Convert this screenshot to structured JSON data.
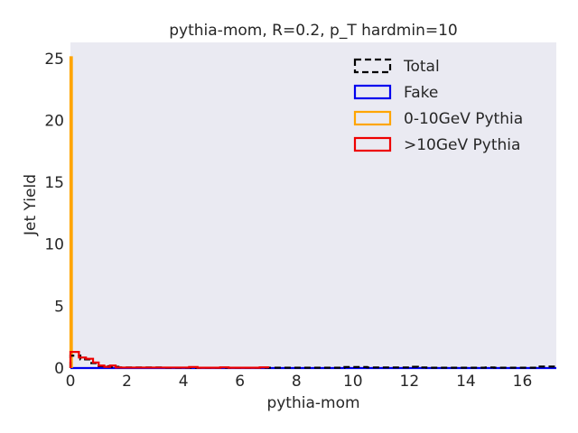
{
  "chart_data": {
    "type": "step-histogram",
    "title": "pythia-mom, R=0.2, p_T hardmin=10",
    "xlabel": "pythia-mom",
    "ylabel": "Jet Yield",
    "xlim": [
      0,
      17.2
    ],
    "ylim": [
      0,
      26.3
    ],
    "xticks": [
      0,
      2,
      4,
      6,
      8,
      10,
      12,
      14,
      16
    ],
    "yticks": [
      0,
      5,
      10,
      15,
      20,
      25
    ],
    "grid": false,
    "background": "#eaeaf2",
    "legend_position": "top-right",
    "series": [
      {
        "name": "Total",
        "color": "#000000",
        "style": "dashed",
        "bin_edges": [
          0,
          0.35,
          0.7,
          1.0,
          1.35,
          1.7,
          2.0,
          3.3,
          7.0,
          9.7,
          10.5,
          11.7,
          12.0,
          12.3,
          12.6,
          14.7,
          15.0,
          15.5,
          16.5,
          17.2
        ],
        "counts": [
          1.0,
          0.7,
          0.4,
          0.15,
          0.1,
          0.05,
          0.05,
          0.03,
          0.03,
          0.08,
          0.05,
          0.05,
          0.1,
          0.05,
          0.03,
          0.05,
          0.03,
          0.03,
          0.12
        ]
      },
      {
        "name": "Fake",
        "color": "#0000ee",
        "style": "solid",
        "bin_edges": [
          0,
          17.2
        ],
        "counts": [
          0
        ]
      },
      {
        "name": "0-10GeV Pythia",
        "color": "#ffa500",
        "style": "solid",
        "bin_edges": [
          0,
          0.05
        ],
        "counts": [
          25.1
        ]
      },
      {
        "name": ">10GeV Pythia",
        "color": "#ee0000",
        "style": "solid",
        "bin_edges": [
          0,
          0.3,
          0.55,
          0.8,
          1.0,
          1.2,
          1.4,
          1.6,
          1.8,
          4.2,
          4.5,
          5.3,
          5.6,
          6.7,
          7.0
        ],
        "counts": [
          1.3,
          0.85,
          0.75,
          0.45,
          0.2,
          0.1,
          0.2,
          0.05,
          0.04,
          0.08,
          0.03,
          0.06,
          0.03,
          0.06
        ]
      }
    ]
  }
}
